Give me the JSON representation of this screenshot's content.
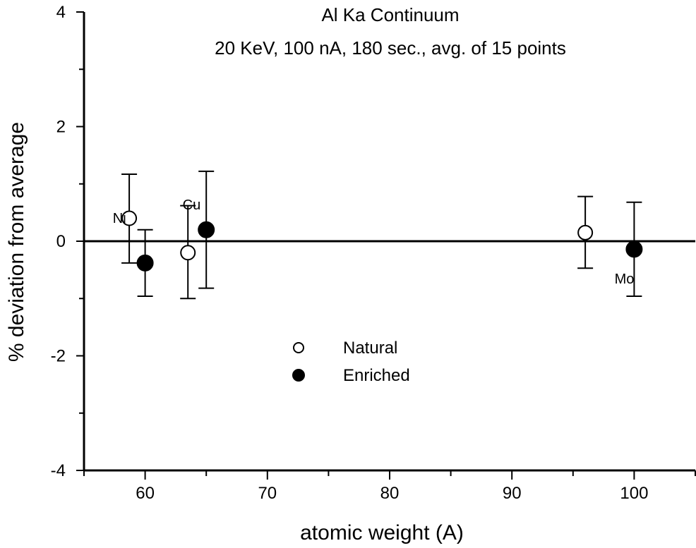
{
  "chart_data": {
    "type": "scatter",
    "title": "Al Ka Continuum",
    "subtitle": "20 KeV, 100 nA, 180 sec., avg. of 15 points",
    "xlabel": "atomic weight (A)",
    "ylabel": "% deviation from average",
    "xlim": [
      55,
      105
    ],
    "ylim": [
      -4,
      4
    ],
    "x_ticks": [
      60,
      70,
      80,
      90,
      100
    ],
    "y_ticks": [
      -4,
      -2,
      0,
      2,
      4
    ],
    "grid": false,
    "reference_line_y": 0,
    "legend_placement": "center",
    "series": [
      {
        "name": "Natural",
        "marker": "open-circle",
        "color": "#000000",
        "points": [
          {
            "x": 58.7,
            "y": 0.4,
            "err_low": -0.38,
            "err_high": 1.17
          },
          {
            "x": 63.5,
            "y": -0.2,
            "err_low": -1.0,
            "err_high": 0.62
          },
          {
            "x": 96,
            "y": 0.15,
            "err_low": -0.47,
            "err_high": 0.78
          }
        ]
      },
      {
        "name": "Enriched",
        "marker": "filled-circle",
        "color": "#000000",
        "points": [
          {
            "x": 60,
            "y": -0.38,
            "err_low": -0.96,
            "err_high": 0.2
          },
          {
            "x": 65,
            "y": 0.2,
            "err_low": -0.82,
            "err_high": 1.22
          },
          {
            "x": 100,
            "y": -0.14,
            "err_low": -0.96,
            "err_high": 0.68
          }
        ]
      }
    ],
    "annotations": [
      {
        "text": "Ni",
        "x": 57.9,
        "y": 0.42
      },
      {
        "text": "Cu",
        "x": 63.8,
        "y": 0.65
      },
      {
        "text": "Mo",
        "x": 99.2,
        "y": -0.64
      }
    ]
  }
}
